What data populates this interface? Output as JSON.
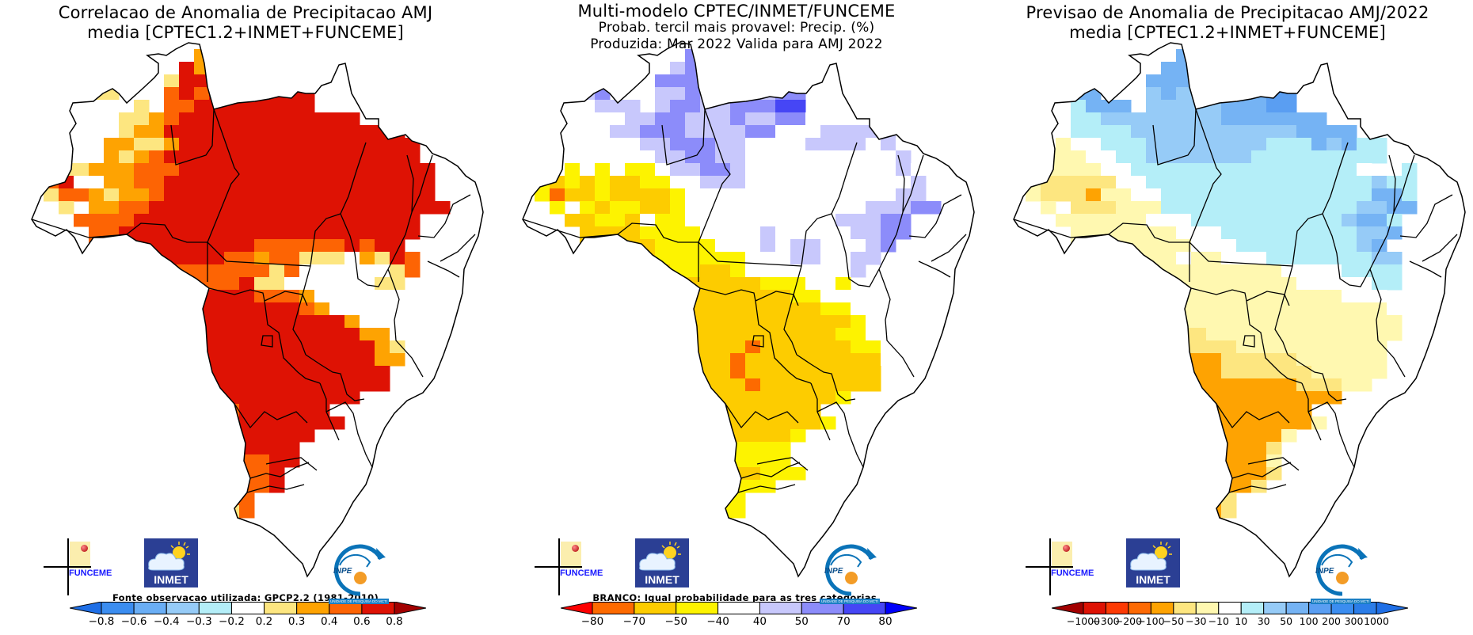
{
  "panels": [
    {
      "id": "correlation",
      "title_lines": [
        "Correlacao de Anomalia de Precipitacao AMJ",
        "media [CPTEC1.2+INMET+FUNCEME]"
      ],
      "footnote": "Fonte observacao utilizada: GPCP2.2 (1981-2010)",
      "colorbar": {
        "labels": [
          "-0.8",
          "-0.6",
          "-0.4",
          "-0.3",
          "-0.2",
          "0.2",
          "0.3",
          "0.4",
          "0.6",
          "0.8"
        ],
        "colors": [
          "#1f6fe6",
          "#3b8df0",
          "#6aaef5",
          "#96cbf7",
          "#b4eef8",
          "#ffffff",
          "#fde680",
          "#fea302",
          "#fd6404",
          "#de1204",
          "#a20000"
        ]
      },
      "map_data": {
        "legend_classes_note": "cell values are colorbar class indices 0..10 (0=below -0.8, 5=-0.2..0.2 white, 10=above 0.8)",
        "grid": [
          "...........7.................",
          "..........97.....7...........",
          ".....66..699.....89..........",
          "....66...8989999999..........",
          "....5556.8899999999..........",
          "....556678999999999999.......",
          "...5556779999999999999999....",
          "...55776679999999999999999...",
          "..555767899999999999999999...",
          ".56677788899999999999999999..",
          ".89557788999999999999999999..",
          ".68876778999999999999999999..",
          "..6.778899999999999999999999.",
          "...88889999999999999999999...",
          "....8899999999999999999999...",
          "....889999999998888889899....",
          "......88999998878866657698...",
          "......88888888886855555568...",
          ".......999888896655555566....",
          "........99999998887555555....",
          "........999999999987555555...",
          ".........99999999999975555...",
          ".........9999999999999775....",
          "..........999999999999976....",
          "...........99999999999977....",
          "...........9999999999999.....",
          "............999999999999.....",
          "............9999999999.......",
          ".............8999999.........",
          "............999999999........",
          "...........99999999..........",
          "...........9999999...........",
          "..........79888899...........",
          "..........6688889............",
          ".........66688889............",
          "........6666688..............",
          ".........666668..............",
          "..........6666...............",
          "............6................"
        ]
      }
    },
    {
      "id": "probability",
      "title_lines": [
        "Multi-modelo CPTEC/INMET/FUNCEME",
        "Probab. tercil mais provavel: Precip. (%)",
        "Produzida: Mar 2022  Valida para AMJ 2022"
      ],
      "footnote": "BRANCO: Igual probabilidade para as tres categorias.",
      "colorbar": {
        "labels": [
          "-80",
          "-70",
          "-50",
          "-40",
          "40",
          "50",
          "70",
          "80"
        ],
        "colors": [
          "#fd0000",
          "#fd6a00",
          "#fdcc00",
          "#fdf300",
          "#ffffff",
          "#c8c8fc",
          "#8c8cfa",
          "#4646f5",
          "#0000fa"
        ]
      },
      "map_data": {
        "legend_classes_note": "cell values are colorbar class indices 0..8 (4=white equal probability)",
        "grid": [
          "...........6.................",
          "..........56.....6...........",
          ".....55..666.....76..........",
          "....56...5565555566..........",
          "....4555.5665566677..........",
          "....444556655565566444.......",
          "...4445566655556644455555....",
          "...44444556665544445555454...",
          "..444444455665544444444445...",
          ".44343433455665444444444454..",
          ".32323223344555444444444445..",
          ".31223222234444444444444455..",
          "..3.323322344444444444455566.",
          "...22332433444444444455566...",
          "....2222333344445444445566...",
          "....221223333444545544456....",
          "......222333333444554455....",
          "......22223322344444445......",
          ".......222222222333443.......",
          "........22222222223344.......",
          "........222222222222334......",
          ".........2222222222222344....",
          ".........2222222222223344....",
          "..........222221222222334....",
          "...........22212222222224....",
          "...........2221222222222.....",
          "............222122222222.....",
          "............2222222223.......",
          ".............2222222.........",
          "............332222223........",
          "...........33322223..........",
          "...........3333333...........",
          "..........33333333...........",
          "..........333222333..........",
          ".........33333333............",
          "........3333333..............",
          ".........333333..............",
          "..........3333...............",
          "............3................"
        ]
      }
    },
    {
      "id": "anomaly",
      "title_lines": [
        "Previsao de Anomalia de Precipitacao AMJ/2022",
        "media [CPTEC1.2+INMET+FUNCEME]"
      ],
      "footnote": "",
      "colorbar": {
        "labels": [
          "-1000",
          "-300",
          "-200",
          "-100",
          "-50",
          "-30",
          "-10",
          "10",
          "30",
          "50",
          "100",
          "200",
          "300",
          "1000"
        ],
        "colors": [
          "#a20000",
          "#de1204",
          "#fd3a04",
          "#fd6a04",
          "#fea302",
          "#fde680",
          "#fff8b0",
          "#ffffff",
          "#b4eef8",
          "#96cbf7",
          "#75b3f4",
          "#5a9ef2",
          "#3b8df0",
          "#2b7de8",
          "#1f6fe6"
        ]
      },
      "map_data": {
        "legend_classes_note": "cell values are colorbar class indices 0..14 (7=white -10..10)",
        "grid": [
          "...........A.................",
          "..........AA.....B...........",
          ".....AA..AAA.....BB..........",
          "....AA...9A99999ABB..........",
          "....8AAA.99999AAABB..........",
          "....8899999999AAAAAAA........",
          "...7888899999999999AAAA......",
          "...67788899999999888A9A88....",
          "..66677889999999888888888....",
          ".66666778888888888888887..8..",
          ".65555577888888888888888988..",
          ".65554667788888888888888AA8..",
          "..6.555666888888888888899AA..",
          "...66666677788888888889AA8...",
          "....666666677788888888899A...",
          "....66666666777888888889A....",
          "......66666766777888888899...",
          "......66666666666677778888...",
          ".......6666666666667777788...",
          "........66666666666666777....",
          "........666666666666666667...",
          ".........66666666666666666...",
          ".........55556666666666666...",
          "..........555556666666666....",
          "...........44455555666666....",
          "...........44455555566666....",
          "............444444455566.....",
          "............4444444444.......",
          ".............4444444.........",
          "............544444446........",
          "...........64444446..........",
          "...........6444445...........",
          "..........66444446...........",
          "..........66444445...........",
          ".........66444445............",
          "........6664445..............",
          ".........666445..............",
          "..........6666...............",
          "............6................"
        ]
      }
    }
  ],
  "logos": {
    "funceme": "FUNCEME",
    "inmet": "INMET",
    "inpe": "INPE",
    "inpe_caption": "UNIDADE DE PESQUISA DO MCTI"
  }
}
